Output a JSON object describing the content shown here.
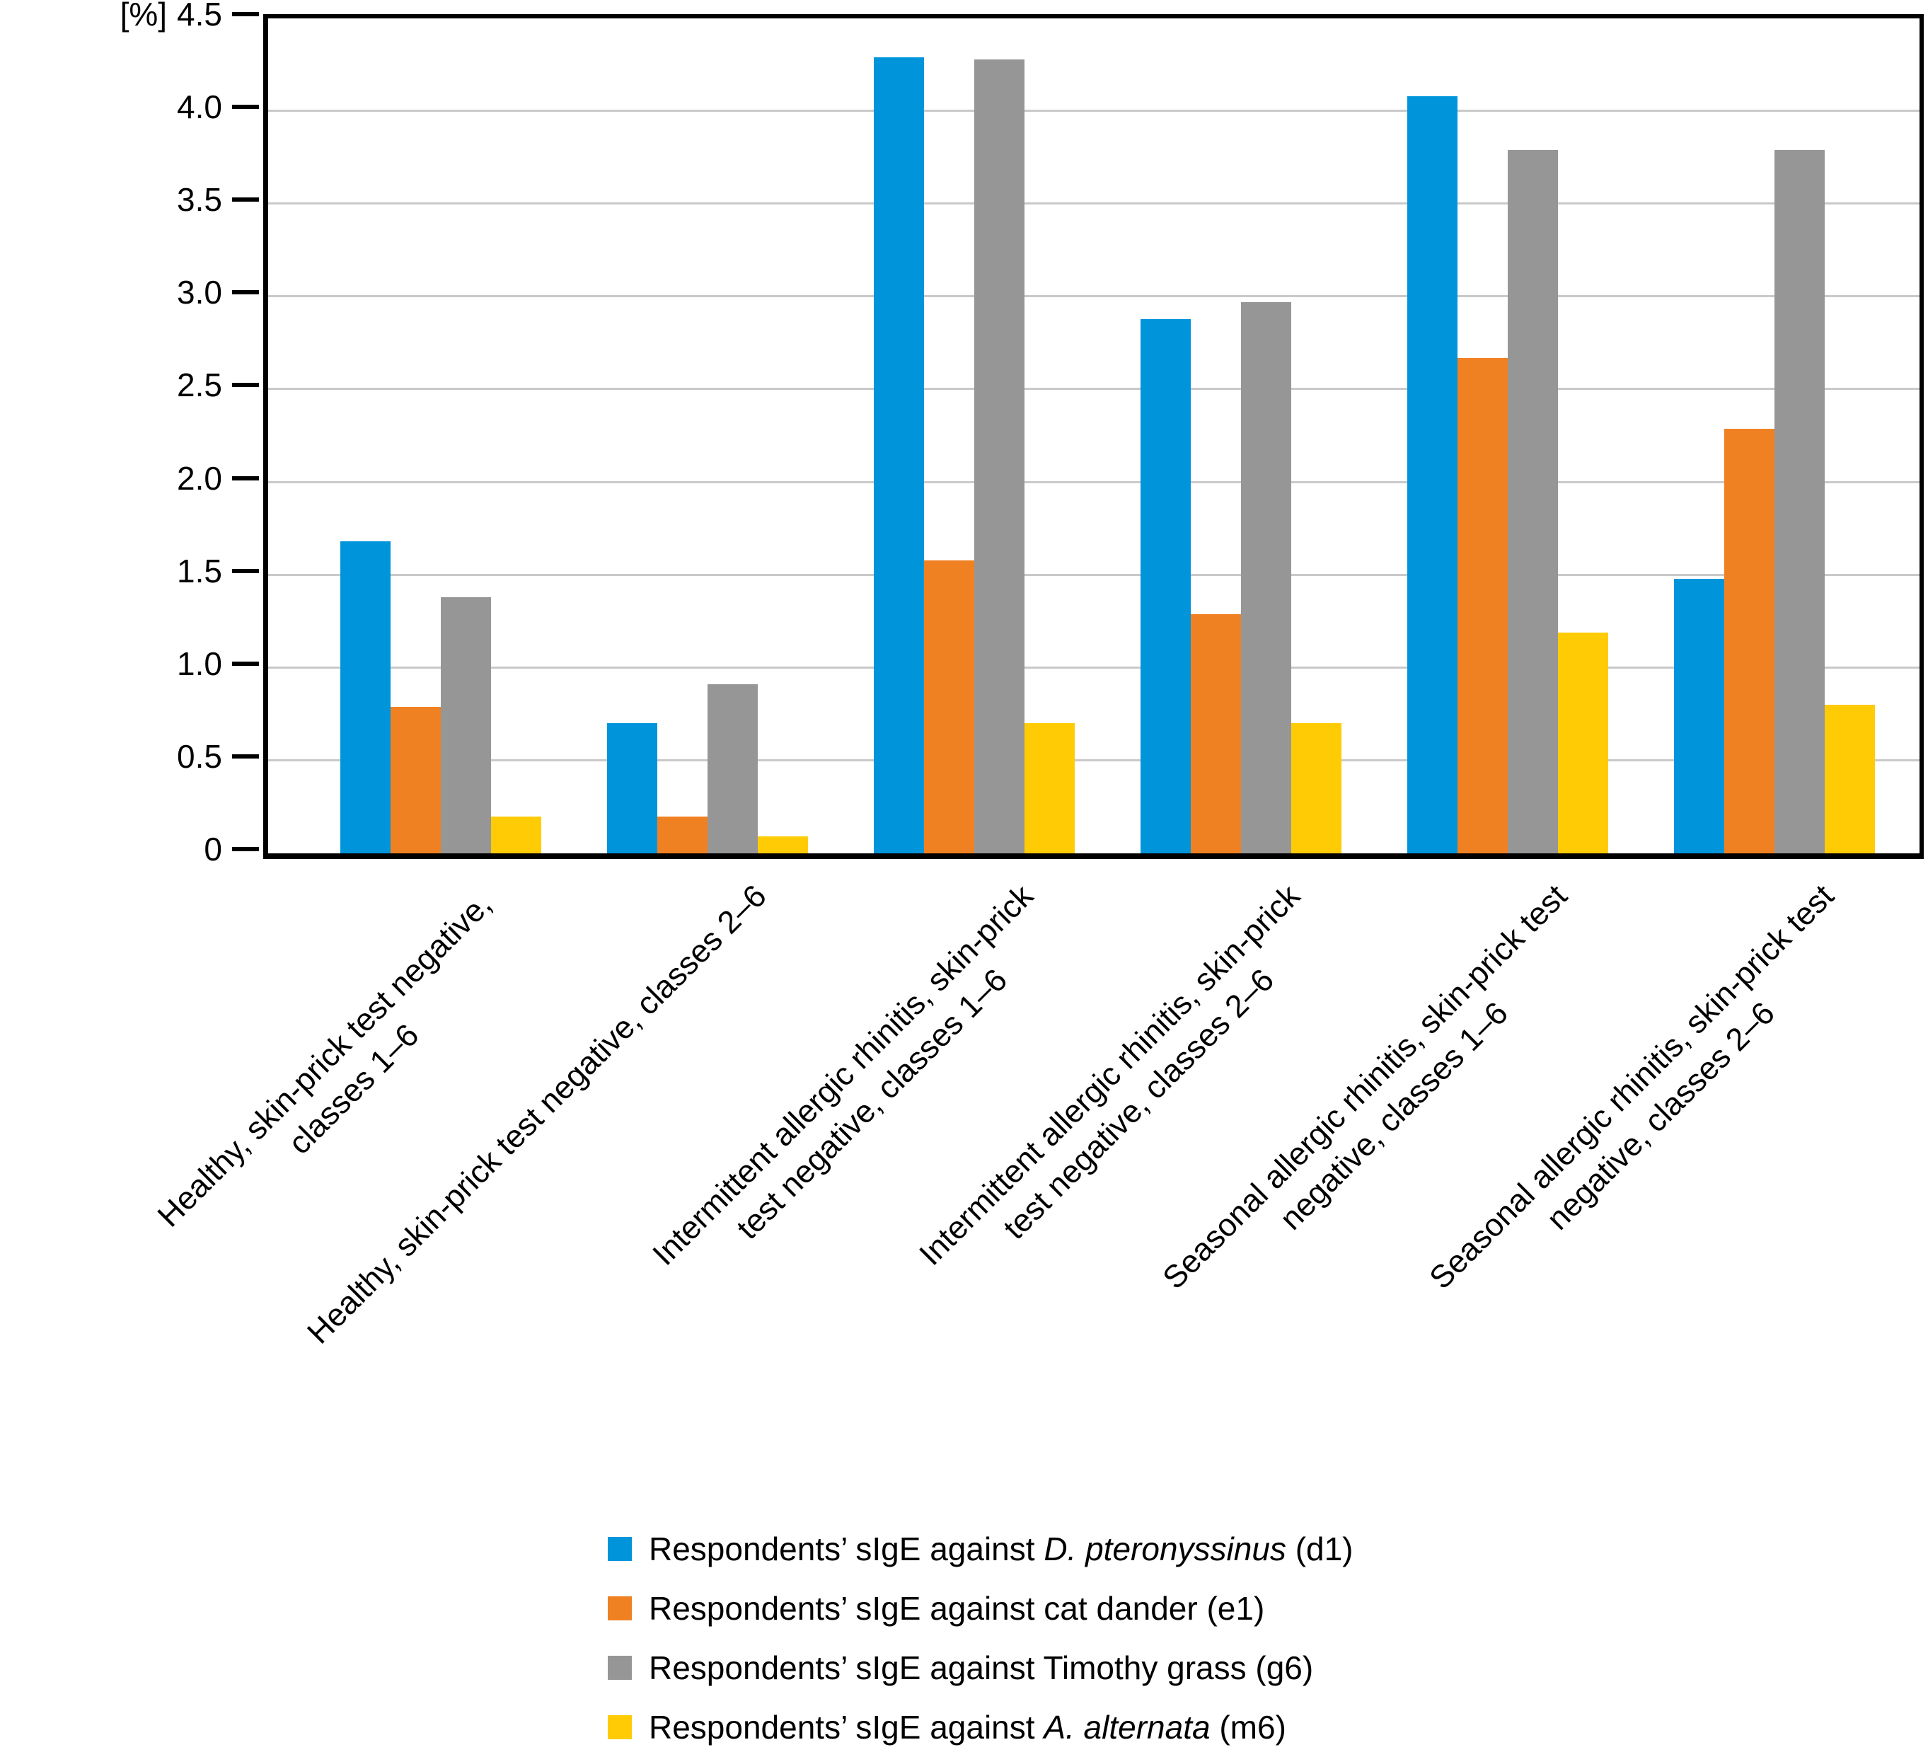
{
  "chart_data": {
    "type": "bar",
    "title": "",
    "xlabel": "",
    "ylabel": "",
    "unit_label": "[%]",
    "ylim": [
      0,
      4.5
    ],
    "ytick_step": 0.5,
    "yticks": [
      "0",
      "0.5",
      "1.0",
      "1.5",
      "2.0",
      "2.5",
      "3.0",
      "3.5",
      "4.0",
      "4.5"
    ],
    "grid": true,
    "legend_position": "bottom",
    "categories": [
      {
        "lines": "Healthy, skin-prick test negative, classes 1–6"
      },
      {
        "lines": "Healthy, skin-prick test negative, classes 2–6"
      },
      {
        "lines": "Intermittent allergic rhinitis, skin-prick\ntest negative, classes 1–6"
      },
      {
        "lines": "Intermittent allergic rhinitis, skin-prick\ntest negative, classes 2–6"
      },
      {
        "lines": "Seasonal allergic rhinitis, skin-prick test\nnegative, classes 1–6"
      },
      {
        "lines": "Seasonal allergic rhinitis, skin-prick test\nnegative, classes 2–6"
      }
    ],
    "series": [
      {
        "name": "Respondents’ sIgE against D. pteronyssinus (d1)",
        "label_parts": {
          "prefix": "Respondents’ sIgE against ",
          "italic": "D. pteronyssinus",
          "suffix": " (d1)"
        },
        "color": "#0095DB",
        "values": [
          1.68,
          0.7,
          4.29,
          2.88,
          4.08,
          1.48
        ]
      },
      {
        "name": "Respondents’ sIgE against cat dander (e1)",
        "label_parts": {
          "prefix": "Respondents’ sIgE against cat dander",
          "italic": "",
          "suffix": " (e1)"
        },
        "color": "#F08122",
        "values": [
          0.79,
          0.2,
          1.58,
          1.29,
          2.67,
          2.29
        ]
      },
      {
        "name": "Respondents’ sIgE against Timothy grass (g6)",
        "label_parts": {
          "prefix": "Respondents’ sIgE against Timothy grass",
          "italic": "",
          "suffix": " (g6)"
        },
        "color": "#969696",
        "values": [
          1.38,
          0.91,
          4.28,
          2.97,
          3.79,
          3.79
        ]
      },
      {
        "name": "Respondents’ sIgE against A. alternata (m6)",
        "label_parts": {
          "prefix": "Respondents’ sIgE against ",
          "italic": "A. alternata",
          "suffix": " (m6)"
        },
        "color": "#FFCB05",
        "values": [
          0.2,
          0.09,
          0.7,
          0.7,
          1.19,
          0.8
        ]
      }
    ],
    "colors": {
      "axis": "#000000",
      "gridline": "#c9c9c9",
      "background": "#ffffff"
    }
  }
}
